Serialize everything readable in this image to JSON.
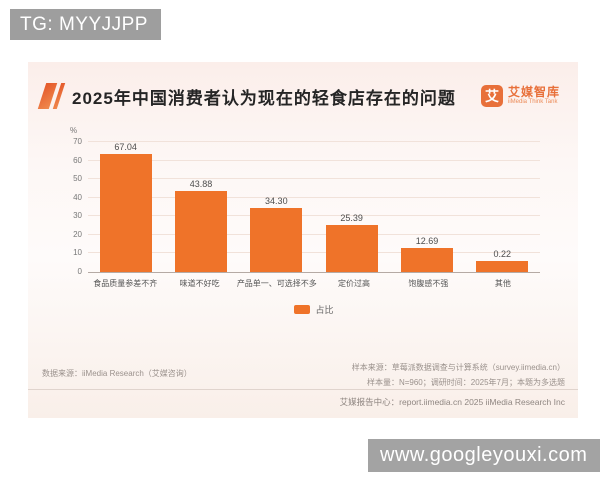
{
  "watermarks": {
    "top_left": "TG: MYYJJPP",
    "bottom_right": "www.googleyouxi.com"
  },
  "header": {
    "title": "2025年中国消费者认为现在的轻食店存在的问题",
    "logo": {
      "icon_char": "艾",
      "name": "艾媒智库",
      "subtitle": "iiMedia Think Tank"
    }
  },
  "chart_data": {
    "type": "bar",
    "title": "2025年中国消费者认为现在的轻食店存在的问题",
    "categories": [
      "食品质量参差不齐",
      "味道不好吃",
      "产品单一、可选择不多",
      "定价过高",
      "饱腹感不强",
      "其他"
    ],
    "values": [
      67.04,
      43.88,
      34.3,
      25.39,
      12.69,
      0.22
    ],
    "value_labels": [
      "67.04",
      "43.88",
      "34.30",
      "25.39",
      "12.69",
      "0.22"
    ],
    "unit_label": "%",
    "xlabel": "",
    "ylabel": "%",
    "ylim": [
      0,
      70
    ],
    "yticks": [
      0,
      10,
      20,
      30,
      40,
      50,
      60,
      70
    ],
    "grid": true,
    "legend_position": "bottom-center",
    "legend": [
      {
        "label": "占比",
        "color": "#ef7329"
      }
    ],
    "bar_color": "#ef7329"
  },
  "footer": {
    "data_source": "数据来源：iiMedia Research（艾媒咨询）",
    "sample_source": "样本来源：草莓派数据调查与计算系统（survey.iimedia.cn）",
    "sample_info": "样本量：N=960；调研时间：2025年7月；本题为多选题",
    "report_center": "艾媒报告中心：report.iimedia.cn   2025 iiMedia Research Inc"
  }
}
